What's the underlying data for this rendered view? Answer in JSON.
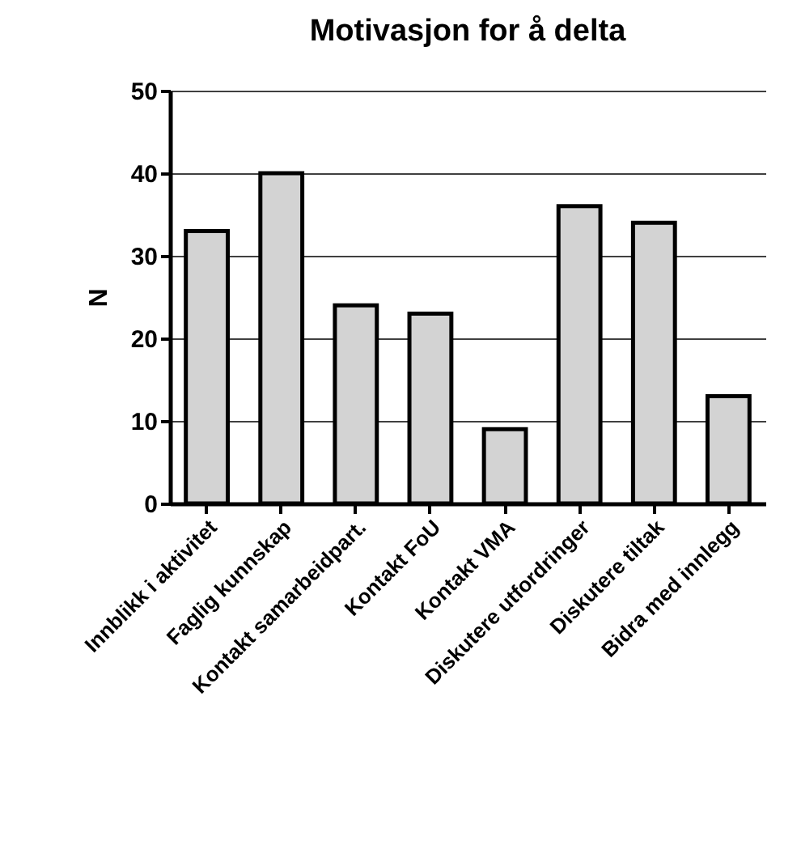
{
  "chart_data": {
    "type": "bar",
    "title": "Motivasjon for å delta",
    "ylabel": "N",
    "categories": [
      "Innblikk i aktivitet",
      "Faglig kunnskap",
      "Kontakt samarbeidpart.",
      "Kontakt FoU",
      "Kontakt VMA",
      "Diskutere utfordringer",
      "Diskutere tiltak",
      "Bidra med innlegg"
    ],
    "values": [
      33,
      40,
      24,
      23,
      9,
      36,
      34,
      13
    ],
    "color": "#d3d3d3",
    "ylim": [
      0,
      50
    ],
    "yticks": [
      0,
      10,
      20,
      30,
      40,
      50
    ],
    "grid": "y"
  }
}
